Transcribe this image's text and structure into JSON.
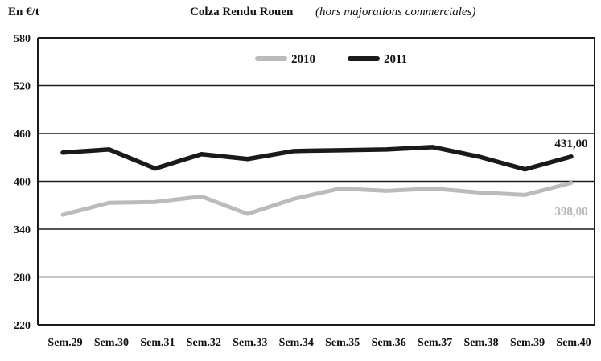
{
  "chart_data": {
    "type": "line",
    "title": "Colza Rendu Rouen",
    "subtitle": "(hors majorations commerciales)",
    "ylabel": "En €/t",
    "xlabel": "",
    "categories": [
      "Sem.29",
      "Sem.30",
      "Sem.31",
      "Sem.32",
      "Sem.33",
      "Sem.34",
      "Sem.35",
      "Sem.36",
      "Sem.37",
      "Sem.38",
      "Sem.39",
      "Sem.40"
    ],
    "ylim": [
      220,
      580
    ],
    "yticks": [
      220,
      280,
      340,
      400,
      460,
      520,
      580
    ],
    "grid": "horizontal",
    "legend_position": "top-center",
    "series": [
      {
        "name": "2010",
        "color": "#bbbbbb",
        "values": [
          358,
          373,
          374,
          381,
          359,
          378,
          391,
          388,
          391,
          386,
          383,
          398
        ],
        "end_label": "398,00"
      },
      {
        "name": "2011",
        "color": "#1a1a1a",
        "values": [
          436,
          440,
          416,
          434,
          428,
          438,
          439,
          440,
          443,
          431,
          415,
          431
        ],
        "end_label": "431,00"
      }
    ]
  }
}
